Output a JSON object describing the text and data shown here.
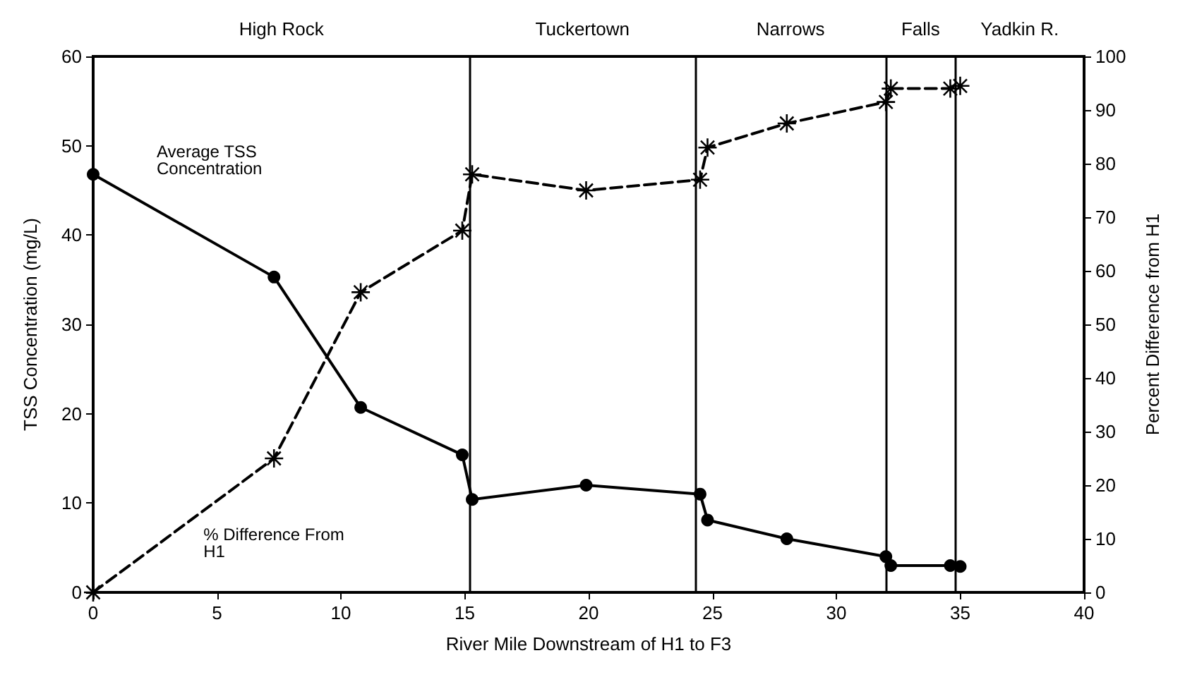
{
  "chart_data": {
    "type": "line",
    "xlabel": "River Mile Downstream of H1 to F3",
    "ylabel": "TSS Concentration (mg/L)",
    "y2label": "Percent Difference from H1",
    "xlim": [
      0,
      40
    ],
    "xticks": [
      0,
      5,
      10,
      15,
      20,
      25,
      30,
      35,
      40
    ],
    "ylim": [
      0,
      60
    ],
    "yticks": [
      0,
      10,
      20,
      30,
      40,
      50,
      60
    ],
    "y2lim": [
      0,
      100
    ],
    "y2ticks": [
      0,
      10,
      20,
      30,
      40,
      50,
      60,
      70,
      80,
      90,
      100
    ],
    "grid": false,
    "legend": false,
    "series": [
      {
        "name": "Average TSS Concentration",
        "color": "#000000",
        "marker": "circle",
        "line_style": "solid",
        "x": [
          0,
          7.3,
          10.8,
          14.9,
          15.3,
          19.9,
          24.5,
          24.8,
          28.0,
          32.0,
          32.2,
          34.6,
          35.0
        ],
        "values": [
          46.8,
          35.3,
          20.7,
          15.4,
          10.4,
          12.0,
          11.0,
          8.1,
          6.0,
          4.0,
          3.0,
          3.0,
          2.9
        ]
      },
      {
        "name": "% Difference From H1",
        "color": "#000000",
        "marker": "star",
        "line_style": "dashed",
        "axis": "y2",
        "x": [
          0,
          7.3,
          10.8,
          14.9,
          15.3,
          19.9,
          24.5,
          24.8,
          28.0,
          32.0,
          32.2,
          34.6,
          35.0
        ],
        "values": [
          0,
          25,
          56,
          67.5,
          78,
          75,
          77,
          83,
          87.5,
          91.5,
          94,
          94,
          94.5
        ]
      }
    ],
    "ref_lines": [
      {
        "axis": "x",
        "value": 15.2
      },
      {
        "axis": "x",
        "value": 24.3
      },
      {
        "axis": "x",
        "value": 32.0
      },
      {
        "axis": "x",
        "value": 34.8
      }
    ],
    "annotations": [
      "High Rock",
      "Tuckertown",
      "Narrows",
      "Falls",
      "Yadkin R."
    ]
  }
}
